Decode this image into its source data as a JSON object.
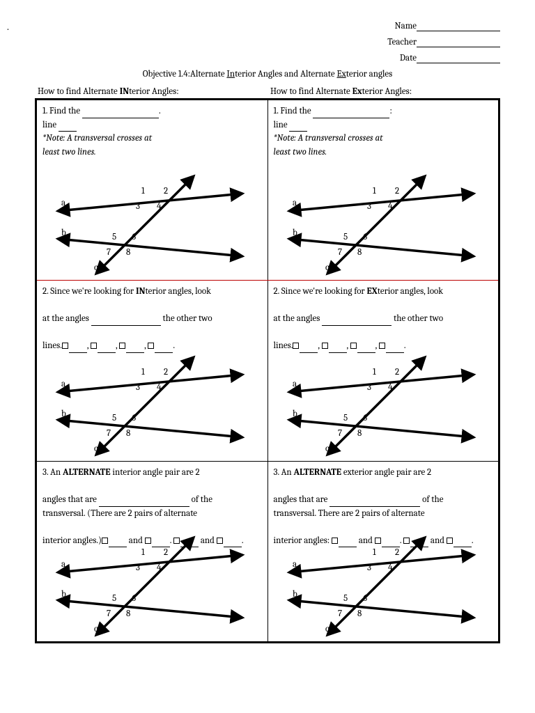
{
  "header": {
    "name_label": "Name",
    "teacher_label": "Teacher",
    "date_label": "Date"
  },
  "title": {
    "prefix": "Objective 1.4:Alternate ",
    "u1": "In",
    "mid1": "terior Angles and Alternate ",
    "u2": "Ex",
    "suffix": "terior angles"
  },
  "colheads": {
    "left_pre": "How to find Alternate ",
    "left_bold": "IN",
    "left_post": "terior Angles:",
    "right_pre": "How to find Alternate ",
    "right_bold": "Ex",
    "right_post": "terior Angles:"
  },
  "cells": {
    "r1": {
      "find_pre": "1. Find the ",
      "find_post_left": ". line ",
      "find_post_right": ": line ",
      "note": "*Note: A transversal crosses at least two lines."
    },
    "r2l": {
      "pre": "2. Since we're looking for ",
      "bold": "IN",
      "post": "terior angles, look",
      "line2a": "at the angles ",
      "line2b": " the other two",
      "line3a": "lines."
    },
    "r2r": {
      "pre": "2. Since we're looking for ",
      "bold": "EX",
      "post": "terior angles, look",
      "line2a": "at the angles ",
      "line2b": " the other two",
      "line3a": "lines."
    },
    "r3l": {
      "line1a": "3. An ",
      "line1b": "ALTERNATE",
      "line1c": " interior angle pair are 2",
      "line2a": "angles that are ",
      "line2b": " of the",
      "line3": "transversal. (There are 2 pairs of alternate",
      "line4a": "interior angles.)",
      "and": " and ",
      "period": ". "
    },
    "r3r": {
      "line1a": "3. An ",
      "line1b": "ALTERNATE",
      "line1c": " exterior angle pair are 2",
      "line2a": "angles that are ",
      "line2b": " of the",
      "line3": "transversal. There are 2 pairs of alternate",
      "line4a": "interior angles: ",
      "and": " and ",
      "period": ". "
    }
  },
  "diagram": {
    "labels": {
      "a": "a",
      "b": "b",
      "c": "c"
    },
    "nums": [
      "1",
      "2",
      "3",
      "4",
      "5",
      "6",
      "7",
      "8"
    ]
  }
}
